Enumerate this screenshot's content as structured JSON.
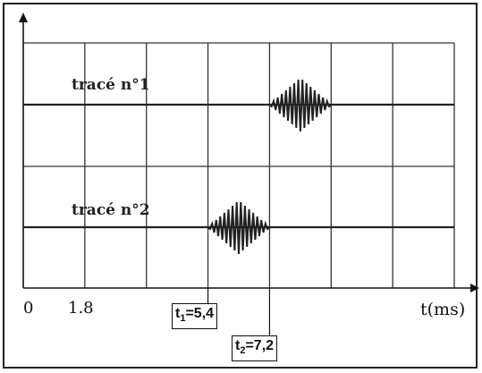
{
  "chart_data": {
    "type": "line",
    "xlabel": "t(ms)",
    "x_tick_labels": [
      "0",
      "1.8"
    ],
    "grid": true,
    "grid_step_ms": 1.8,
    "xlim": [
      0,
      12.6
    ],
    "series": [
      {
        "name": "tracé n°1",
        "burst_start_ms": 7.2,
        "burst_end_ms": 9.0,
        "peak_ms": 8.1
      },
      {
        "name": "tracé n°2",
        "burst_start_ms": 5.4,
        "burst_end_ms": 7.2,
        "peak_ms": 6.3
      }
    ],
    "annotations": [
      {
        "prefix": "t",
        "sub": "1",
        "text": "=5,4",
        "x_ms": 5.4
      },
      {
        "prefix": "t",
        "sub": "2",
        "text": "=7,2",
        "x_ms": 7.2
      }
    ]
  }
}
